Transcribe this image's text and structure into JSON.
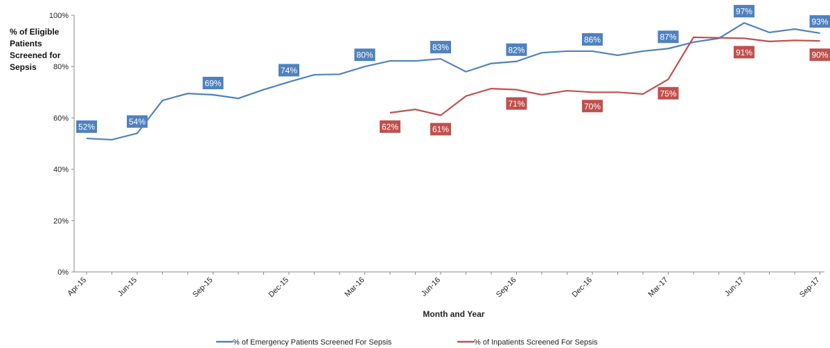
{
  "chart_data": {
    "type": "line",
    "y_label": "% of Eligible Patients Screened for Sepsis",
    "x_label": "Month and Year",
    "categories": [
      "Apr-15",
      null,
      "Jun-15",
      null,
      null,
      "Sep-15",
      null,
      null,
      "Dec-15",
      null,
      null,
      "Mar-16",
      null,
      null,
      "Jun-16",
      null,
      null,
      "Sep-16",
      null,
      null,
      "Dec-16",
      null,
      null,
      "Mar-17",
      null,
      null,
      "Jun-17",
      null,
      null,
      "Sep-17"
    ],
    "ylim": [
      0,
      100
    ],
    "yticks": [
      {
        "value": 0,
        "label": "0%"
      },
      {
        "value": 20,
        "label": "20%"
      },
      {
        "value": 40,
        "label": "40%"
      },
      {
        "value": 60,
        "label": "60%"
      },
      {
        "value": 80,
        "label": "80%"
      },
      {
        "value": 100,
        "label": "100%"
      }
    ],
    "series": [
      {
        "name": "% of Emergency Patients Screened For Sepsis",
        "color": "#4f81bd",
        "values": [
          52,
          51.5,
          54,
          66.8,
          69.5,
          69,
          67.6,
          71,
          74,
          76.8,
          77,
          80,
          82.2,
          82.2,
          83,
          78,
          81.2,
          82,
          85.4,
          86,
          86,
          84.4,
          86,
          87,
          89.5,
          91,
          97,
          93.3,
          94.6,
          93
        ],
        "value_labels": [
          "52%",
          null,
          "54%",
          null,
          null,
          "69%",
          null,
          null,
          "74%",
          null,
          null,
          "80%",
          null,
          null,
          "83%",
          null,
          null,
          "82%",
          null,
          null,
          "86%",
          null,
          null,
          "87%",
          null,
          null,
          "97%",
          null,
          null,
          "93%"
        ]
      },
      {
        "name": "% of Inpatients Screened For Sepsis",
        "color": "#c0504d",
        "values": [
          null,
          null,
          null,
          null,
          null,
          null,
          null,
          null,
          null,
          null,
          null,
          null,
          62,
          63.3,
          61,
          68.5,
          71.4,
          71,
          69,
          70.6,
          70,
          70,
          69.3,
          75,
          91.4,
          91.2,
          91,
          89.8,
          90.2,
          90
        ],
        "value_labels": [
          null,
          null,
          null,
          null,
          null,
          null,
          null,
          null,
          null,
          null,
          null,
          null,
          "62%",
          null,
          "61%",
          null,
          null,
          "71%",
          null,
          null,
          "70%",
          null,
          null,
          "75%",
          null,
          null,
          "91%",
          null,
          null,
          "90%"
        ]
      }
    ]
  }
}
